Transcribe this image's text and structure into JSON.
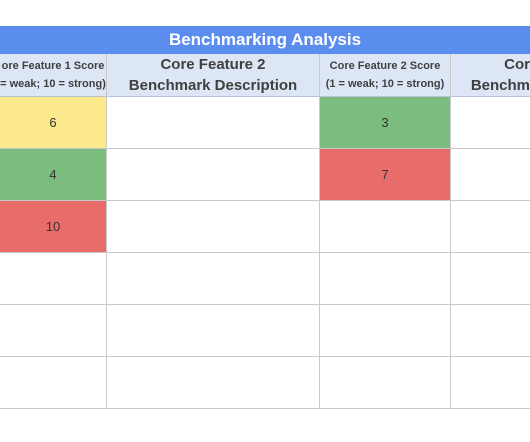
{
  "banner": {
    "title": "Benchmarking Analysis"
  },
  "headers": [
    {
      "line1": "ore Feature 1 Score",
      "line2": "= weak; 10 = strong)"
    },
    {
      "line1": "Core Feature 2",
      "line2": "Benchmark Description"
    },
    {
      "line1": "Core Feature 2 Score",
      "line2": "(1 = weak; 10 = strong)"
    },
    {
      "line1": "Cor",
      "line2": "Benchm"
    }
  ],
  "rows": [
    {
      "f1_score": "6",
      "f1_color": "yellow",
      "f2_desc": "",
      "f2_score": "3",
      "f2_color": "green",
      "f3_desc": ""
    },
    {
      "f1_score": "4",
      "f1_color": "green",
      "f2_desc": "",
      "f2_score": "7",
      "f2_color": "red",
      "f3_desc": ""
    },
    {
      "f1_score": "10",
      "f1_color": "red",
      "f2_desc": "",
      "f2_score": "",
      "f2_color": "",
      "f3_desc": ""
    },
    {
      "f1_score": "",
      "f1_color": "",
      "f2_desc": "",
      "f2_score": "",
      "f2_color": "",
      "f3_desc": ""
    },
    {
      "f1_score": "",
      "f1_color": "",
      "f2_desc": "",
      "f2_score": "",
      "f2_color": "",
      "f3_desc": ""
    },
    {
      "f1_score": "",
      "f1_color": "",
      "f2_desc": "",
      "f2_score": "",
      "f2_color": "",
      "f3_desc": ""
    }
  ],
  "colors": {
    "banner": "#5b8def",
    "header": "#dce6f4",
    "yellow": "#fce98c",
    "green": "#7bbd7e",
    "red": "#e86c6a"
  }
}
